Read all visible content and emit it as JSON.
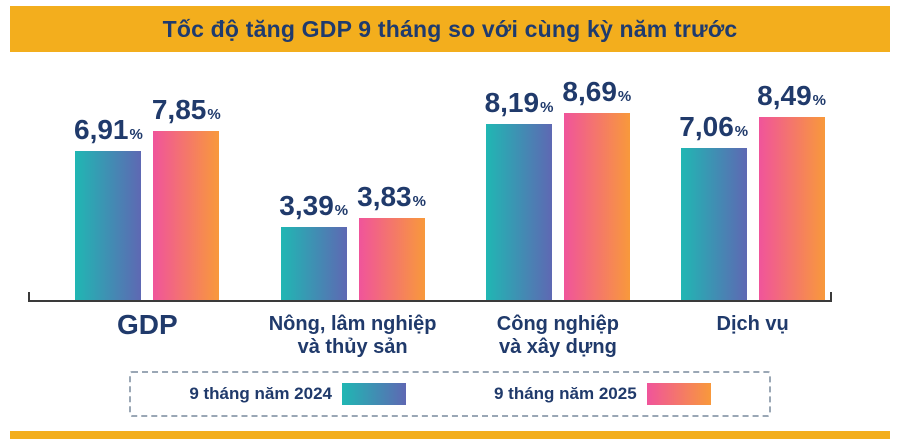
{
  "title": "Tốc độ tăng GDP 9 tháng so với cùng kỳ năm trước",
  "chart_data": {
    "type": "bar",
    "title": "Tốc độ tăng GDP 9 tháng so với cùng kỳ năm trước",
    "unit": "%",
    "categories": [
      "GDP",
      "Nông, lâm nghiệp\nvà thủy sản",
      "Công nghiệp\nvà xây dựng",
      "Dịch vụ"
    ],
    "series": [
      {
        "name": "9 tháng năm 2024",
        "values": [
          6.91,
          3.39,
          8.19,
          7.06
        ],
        "display": [
          "6,91",
          "3,39",
          "8,19",
          "7,06"
        ]
      },
      {
        "name": "9 tháng năm 2025",
        "values": [
          7.85,
          3.83,
          8.69,
          8.49
        ],
        "display": [
          "7,85",
          "3,83",
          "8,69",
          "8,49"
        ]
      }
    ],
    "ylim": [
      0,
      9
    ],
    "grid": false,
    "legend_position": "bottom"
  },
  "legend": {
    "items": [
      {
        "label": "9 tháng năm 2024",
        "gradient": [
          "#20B7B3",
          "#5E68B3"
        ]
      },
      {
        "label": "9 tháng năm 2025",
        "gradient": [
          "#F0549B",
          "#F8993B"
        ]
      }
    ]
  },
  "colors": {
    "banner_bg": "#F3AE1D",
    "title_text": "#1F3B6E",
    "series_2024_start": "#20B7B3",
    "series_2024_end": "#5E68B3",
    "series_2025_start": "#F0549B",
    "series_2025_end": "#F8993B",
    "value_text": "#203A6B",
    "axis_line": "#3A3A3A",
    "bottom_strip": "#F3AE1D"
  }
}
